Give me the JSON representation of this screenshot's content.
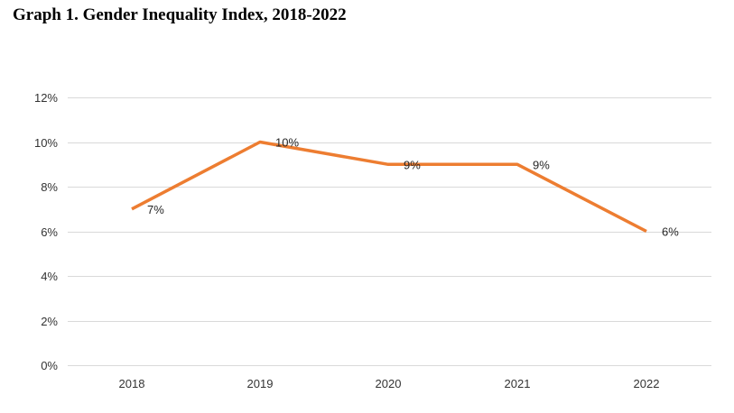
{
  "chart_data": {
    "type": "line",
    "title": "Graph 1. Gender Inequality Index, 2018-2022",
    "xlabel": "",
    "ylabel": "",
    "categories": [
      "2018",
      "2019",
      "2020",
      "2021",
      "2022"
    ],
    "series": [
      {
        "values": [
          0.07,
          0.1,
          0.09,
          0.09,
          0.06
        ],
        "data_labels": [
          "7%",
          "10%",
          "9%",
          "9%",
          "6%"
        ],
        "color": "#ED7D31"
      }
    ],
    "ylim": [
      0,
      0.12
    ],
    "yticks": [
      0,
      0.02,
      0.04,
      0.06,
      0.08,
      0.1,
      0.12
    ],
    "ytick_labels": [
      "0%",
      "2%",
      "4%",
      "6%",
      "8%",
      "10%",
      "12%"
    ],
    "grid": true,
    "legend": "none",
    "gridline_color": "#D9D9D9"
  }
}
